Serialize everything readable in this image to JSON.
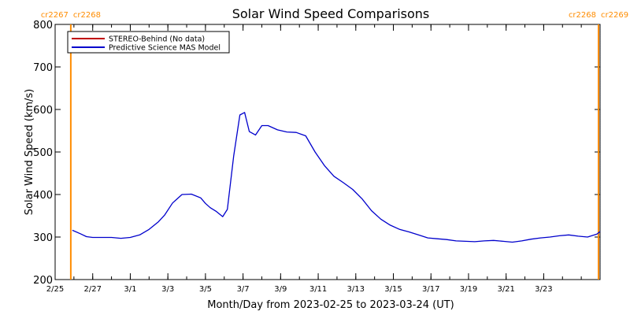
{
  "chart_data": {
    "type": "line",
    "title": "Solar Wind Speed Comparisons",
    "xlabel": "Month/Day from 2023-02-25 to 2023-03-24 (UT)",
    "ylabel": "Solar Wind Speed (km/s)",
    "xlim": [
      "2023-02-25",
      "2023-03-26"
    ],
    "ylim": [
      200,
      800
    ],
    "grid": false,
    "legend_position": "top-left",
    "y_ticks": [
      200,
      300,
      400,
      500,
      600,
      700,
      800
    ],
    "x_ticks": [
      {
        "date": "2023-02-25",
        "label": "2/25"
      },
      {
        "date": "2023-02-27",
        "label": "2/27"
      },
      {
        "date": "2023-03-01",
        "label": "3/1"
      },
      {
        "date": "2023-03-03",
        "label": "3/3"
      },
      {
        "date": "2023-03-05",
        "label": "3/5"
      },
      {
        "date": "2023-03-07",
        "label": "3/7"
      },
      {
        "date": "2023-03-09",
        "label": "3/9"
      },
      {
        "date": "2023-03-11",
        "label": "3/11"
      },
      {
        "date": "2023-03-13",
        "label": "3/13"
      },
      {
        "date": "2023-03-15",
        "label": "3/15"
      },
      {
        "date": "2023-03-17",
        "label": "3/17"
      },
      {
        "date": "2023-03-19",
        "label": "3/19"
      },
      {
        "date": "2023-03-21",
        "label": "3/21"
      },
      {
        "date": "2023-03-23",
        "label": "3/23"
      }
    ],
    "rotation_markers": [
      {
        "date": "2023-02-25 20:00",
        "labels": [
          "cr2267",
          "cr2268"
        ],
        "color": "#ff8c00"
      },
      {
        "date": "2023-03-25 22:00",
        "labels": [
          "cr2268",
          "cr2269"
        ],
        "color": "#ff8c00"
      }
    ],
    "series": [
      {
        "name": "STEREO-Behind (No data)",
        "color": "#c00000",
        "x": [],
        "y": []
      },
      {
        "name": "Predictive Science MAS Model",
        "color": "#0000cc",
        "x": [
          "2023-02-25 22:00",
          "2023-02-26 08:00",
          "2023-02-26 16:00",
          "2023-02-27 00:00",
          "2023-02-27 12:00",
          "2023-02-28 00:00",
          "2023-02-28 12:00",
          "2023-03-01 00:00",
          "2023-03-01 12:00",
          "2023-03-02 00:00",
          "2023-03-02 12:00",
          "2023-03-02 20:00",
          "2023-03-03 06:00",
          "2023-03-03 18:00",
          "2023-03-04 06:00",
          "2023-03-04 18:00",
          "2023-03-05 00:00",
          "2023-03-05 06:00",
          "2023-03-05 14:00",
          "2023-03-05 22:00",
          "2023-03-06 04:00",
          "2023-03-06 12:00",
          "2023-03-06 20:00",
          "2023-03-07 02:00",
          "2023-03-07 08:00",
          "2023-03-07 16:00",
          "2023-03-08 00:00",
          "2023-03-08 08:00",
          "2023-03-08 20:00",
          "2023-03-09 08:00",
          "2023-03-09 20:00",
          "2023-03-10 08:00",
          "2023-03-10 20:00",
          "2023-03-11 08:00",
          "2023-03-11 20:00",
          "2023-03-12 08:00",
          "2023-03-12 20:00",
          "2023-03-13 08:00",
          "2023-03-13 20:00",
          "2023-03-14 08:00",
          "2023-03-14 20:00",
          "2023-03-15 08:00",
          "2023-03-15 20:00",
          "2023-03-16 08:00",
          "2023-03-16 20:00",
          "2023-03-17 08:00",
          "2023-03-17 20:00",
          "2023-03-18 08:00",
          "2023-03-18 20:00",
          "2023-03-19 08:00",
          "2023-03-19 20:00",
          "2023-03-20 08:00",
          "2023-03-20 20:00",
          "2023-03-21 08:00",
          "2023-03-21 20:00",
          "2023-03-22 08:00",
          "2023-03-22 20:00",
          "2023-03-23 08:00",
          "2023-03-23 20:00",
          "2023-03-24 08:00",
          "2023-03-24 20:00",
          "2023-03-25 08:00",
          "2023-03-25 20:00",
          "2023-03-26 00:00"
        ],
        "y": [
          316,
          308,
          301,
          299,
          299,
          299,
          297,
          299,
          305,
          318,
          336,
          352,
          380,
          400,
          401,
          392,
          379,
          369,
          360,
          348,
          365,
          490,
          587,
          593,
          548,
          540,
          562,
          562,
          552,
          547,
          546,
          538,
          500,
          468,
          443,
          428,
          412,
          390,
          362,
          342,
          328,
          318,
          312,
          305,
          298,
          296,
          294,
          291,
          290,
          289,
          291,
          292,
          290,
          288,
          291,
          295,
          298,
          300,
          303,
          305,
          302,
          300,
          307,
          313
        ]
      }
    ]
  }
}
